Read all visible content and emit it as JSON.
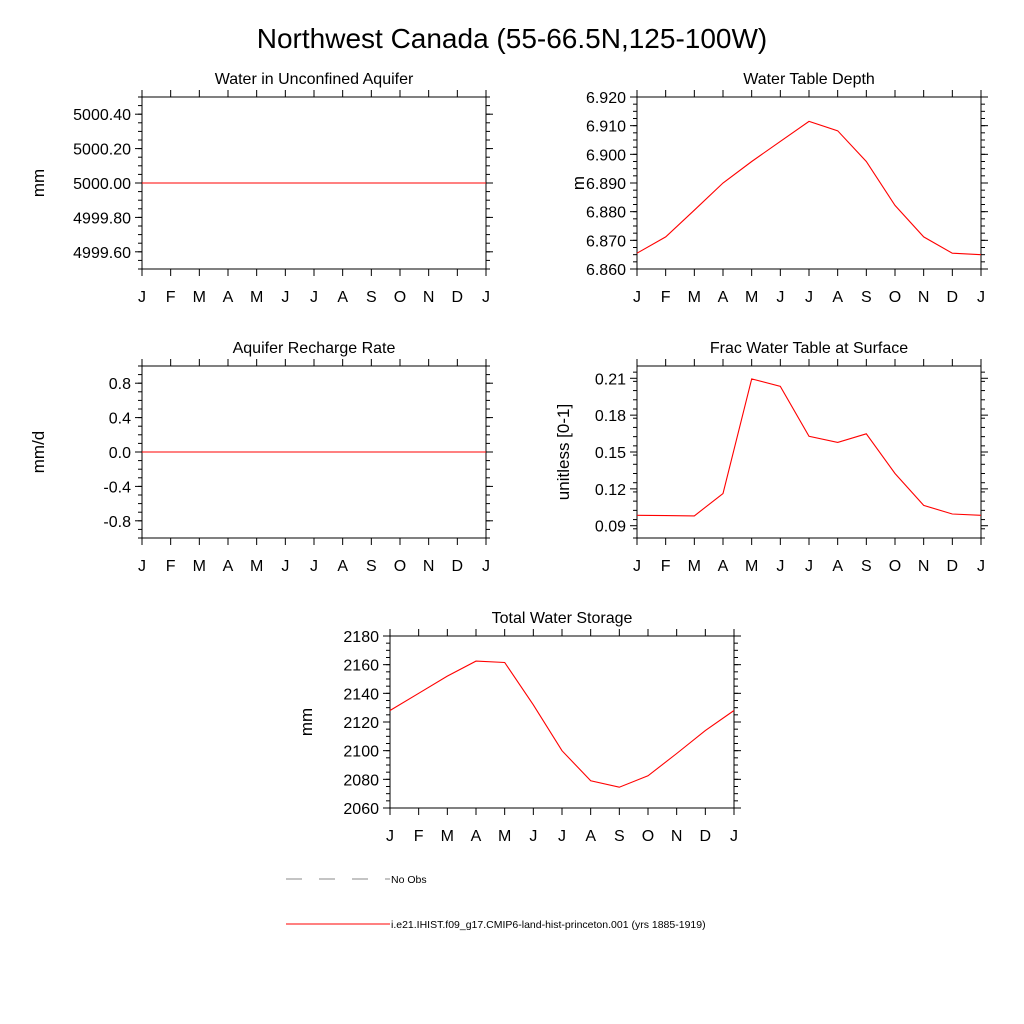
{
  "figure": {
    "title": "Northwest Canada (55-66.5N,125-100W)",
    "line_color": "#ff0000",
    "obs_line_color": "#888888"
  },
  "legend": {
    "items": [
      {
        "label": "No Obs",
        "style": "dashed",
        "color": "#888888"
      },
      {
        "label": "i.e21.IHIST.f09_g17.CMIP6-land-hist-princeton.001 (yrs 1885-1919)",
        "style": "solid",
        "color": "#ff0000"
      }
    ]
  },
  "chart_data": [
    {
      "type": "line",
      "title": "Water in Unconfined Aquifer",
      "ylabel": "mm",
      "categories": [
        "J",
        "F",
        "M",
        "A",
        "M",
        "J",
        "J",
        "A",
        "S",
        "O",
        "N",
        "D",
        "J"
      ],
      "ylim": [
        4999.5,
        5000.5
      ],
      "yticks": [
        "5000.40",
        "5000.20",
        "5000.00",
        "4999.80",
        "4999.60"
      ],
      "ytick_values": [
        5000.4,
        5000.2,
        5000.0,
        4999.8,
        4999.6
      ],
      "series": [
        {
          "values": [
            5000.0,
            5000.0,
            5000.0,
            5000.0,
            5000.0,
            5000.0,
            5000.0,
            5000.0,
            5000.0,
            5000.0,
            5000.0,
            5000.0,
            5000.0
          ]
        }
      ]
    },
    {
      "type": "line",
      "title": "Water Table Depth",
      "ylabel": "m",
      "categories": [
        "J",
        "F",
        "M",
        "A",
        "M",
        "J",
        "J",
        "A",
        "S",
        "O",
        "N",
        "D",
        "J"
      ],
      "ylim": [
        6.86,
        6.92
      ],
      "yticks": [
        "6.920",
        "6.910",
        "6.900",
        "6.890",
        "6.880",
        "6.870",
        "6.860"
      ],
      "ytick_values": [
        6.92,
        6.91,
        6.9,
        6.89,
        6.88,
        6.87,
        6.86
      ],
      "series": [
        {
          "values": [
            6.8655,
            6.8712,
            6.8805,
            6.89,
            6.8975,
            6.9045,
            6.9115,
            6.9082,
            6.8975,
            6.8822,
            6.8712,
            6.8655,
            6.865
          ]
        }
      ]
    },
    {
      "type": "line",
      "title": "Aquifer Recharge Rate",
      "ylabel": "mm/d",
      "categories": [
        "J",
        "F",
        "M",
        "A",
        "M",
        "J",
        "J",
        "A",
        "S",
        "O",
        "N",
        "D",
        "J"
      ],
      "ylim": [
        -1.0,
        1.0
      ],
      "yticks": [
        "0.8",
        "0.4",
        "0.0",
        "-0.4",
        "-0.8"
      ],
      "ytick_values": [
        0.8,
        0.4,
        0.0,
        -0.4,
        -0.8
      ],
      "series": [
        {
          "values": [
            0,
            0,
            0,
            0,
            0,
            0,
            0,
            0,
            0,
            0,
            0,
            0,
            0
          ]
        }
      ]
    },
    {
      "type": "line",
      "title": "Frac Water Table at Surface",
      "ylabel": "unitless [0-1]",
      "categories": [
        "J",
        "F",
        "M",
        "A",
        "M",
        "J",
        "J",
        "A",
        "S",
        "O",
        "N",
        "D",
        "J"
      ],
      "ylim": [
        0.08,
        0.22
      ],
      "yticks": [
        "0.21",
        "0.18",
        "0.15",
        "0.12",
        "0.09"
      ],
      "ytick_values": [
        0.21,
        0.18,
        0.15,
        0.12,
        0.09
      ],
      "series": [
        {
          "values": [
            0.0985,
            0.0982,
            0.098,
            0.1162,
            0.2095,
            0.2035,
            0.1628,
            0.1578,
            0.1648,
            0.1325,
            0.1065,
            0.0995,
            0.0985
          ]
        }
      ]
    },
    {
      "type": "line",
      "title": "Total Water Storage",
      "ylabel": "mm",
      "categories": [
        "J",
        "F",
        "M",
        "A",
        "M",
        "J",
        "J",
        "A",
        "S",
        "O",
        "N",
        "D",
        "J"
      ],
      "ylim": [
        2060,
        2180
      ],
      "yticks": [
        "2180",
        "2160",
        "2140",
        "2120",
        "2100",
        "2080",
        "2060"
      ],
      "ytick_values": [
        2180,
        2160,
        2140,
        2120,
        2100,
        2080,
        2060
      ],
      "series": [
        {
          "values": [
            2128,
            2140,
            2152,
            2162.5,
            2161.5,
            2132,
            2100,
            2079,
            2074.5,
            2082.5,
            2098,
            2114,
            2128
          ]
        }
      ]
    }
  ]
}
